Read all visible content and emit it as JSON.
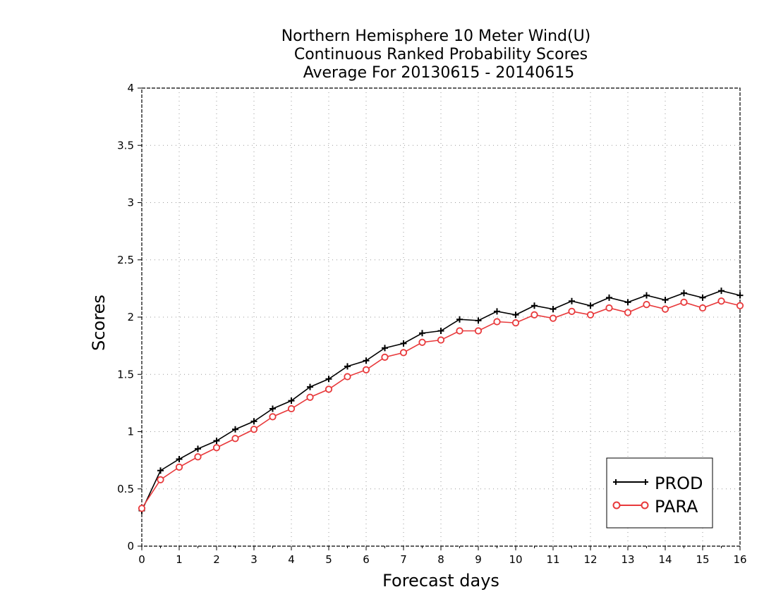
{
  "chart_data": {
    "type": "line",
    "title_lines": [
      "Northern Hemisphere 10 Meter Wind(U)",
      "Continuous Ranked Probability Scores",
      "Average For 20130615 - 20140615"
    ],
    "xlabel": "Forecast days",
    "ylabel": "Scores",
    "xlim": [
      0,
      16
    ],
    "ylim": [
      0,
      4
    ],
    "x_ticks": [
      "0",
      "1",
      "2",
      "3",
      "4",
      "5",
      "6",
      "7",
      "8",
      "9",
      "10",
      "11",
      "12",
      "13",
      "14",
      "15",
      "16"
    ],
    "y_ticks": [
      "0",
      "0.5",
      "1",
      "1.5",
      "2",
      "2.5",
      "3",
      "3.5",
      "4"
    ],
    "grid": true,
    "legend_position": "bottom-right",
    "x": [
      0,
      0.5,
      1,
      1.5,
      2,
      2.5,
      3,
      3.5,
      4,
      4.5,
      5,
      5.5,
      6,
      6.5,
      7,
      7.5,
      8,
      8.5,
      9,
      9.5,
      10,
      10.5,
      11,
      11.5,
      12,
      12.5,
      13,
      13.5,
      14,
      14.5,
      15,
      15.5,
      16
    ],
    "series": [
      {
        "name": "PROD",
        "color": "#000000",
        "marker": "plus",
        "values": [
          0.31,
          0.66,
          0.76,
          0.85,
          0.92,
          1.02,
          1.09,
          1.2,
          1.27,
          1.39,
          1.46,
          1.57,
          1.62,
          1.73,
          1.77,
          1.86,
          1.88,
          1.98,
          1.97,
          2.05,
          2.02,
          2.1,
          2.07,
          2.14,
          2.1,
          2.17,
          2.13,
          2.19,
          2.15,
          2.21,
          2.17,
          2.23,
          2.19
        ]
      },
      {
        "name": "PARA",
        "color": "#e8393b",
        "marker": "circle",
        "values": [
          0.33,
          0.58,
          0.69,
          0.78,
          0.86,
          0.94,
          1.02,
          1.13,
          1.2,
          1.3,
          1.37,
          1.48,
          1.54,
          1.65,
          1.69,
          1.78,
          1.8,
          1.88,
          1.88,
          1.96,
          1.95,
          2.02,
          1.99,
          2.05,
          2.02,
          2.08,
          2.04,
          2.11,
          2.07,
          2.13,
          2.08,
          2.14,
          2.1
        ]
      }
    ]
  }
}
